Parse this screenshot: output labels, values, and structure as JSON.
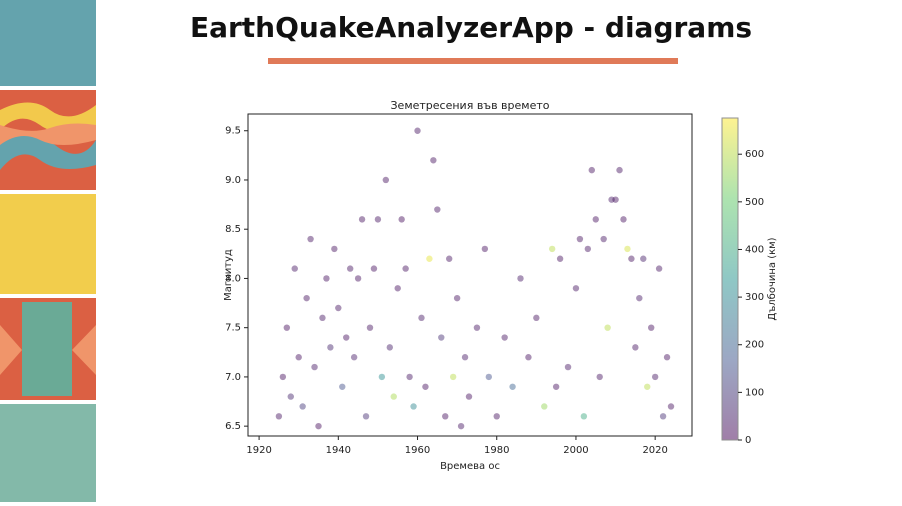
{
  "slide_title": "EarthQuakeAnalyzerApp - diagrams",
  "chart_data": {
    "type": "scatter",
    "title": "Земетресения във времето",
    "x_label": "Времева ос",
    "y_label": "Магнитуд",
    "colorbar_label": "Дълбочина (км)",
    "colormap": "viridis",
    "alpha": 0.45,
    "x": [
      1925,
      1926,
      1927,
      1928,
      1929,
      1930,
      1931,
      1932,
      1933,
      1934,
      1935,
      1936,
      1937,
      1938,
      1939,
      1940,
      1941,
      1942,
      1943,
      1944,
      1945,
      1946,
      1947,
      1948,
      1949,
      1950,
      1951,
      1952,
      1953,
      1954,
      1955,
      1956,
      1957,
      1958,
      1959,
      1960,
      1961,
      1962,
      1963,
      1964,
      1965,
      1966,
      1967,
      1968,
      1969,
      1970,
      1971,
      1972,
      1973,
      1975,
      1977,
      1978,
      1980,
      1982,
      1984,
      1986,
      1988,
      1990,
      1992,
      1994,
      1995,
      1996,
      1998,
      2000,
      2001,
      2002,
      2003,
      2004,
      2005,
      2006,
      2007,
      2008,
      2009,
      2010,
      2011,
      2012,
      2013,
      2014,
      2015,
      2016,
      2017,
      2018,
      2019,
      2020,
      2021,
      2022,
      2023,
      2024
    ],
    "values": [
      6.6,
      7.0,
      7.5,
      6.8,
      8.1,
      7.2,
      6.7,
      7.8,
      8.4,
      7.1,
      6.5,
      7.6,
      8.0,
      7.3,
      8.3,
      7.7,
      6.9,
      7.4,
      8.1,
      7.2,
      8.0,
      8.6,
      6.6,
      7.5,
      8.1,
      8.6,
      7.0,
      9.0,
      7.3,
      6.8,
      7.9,
      8.6,
      8.1,
      7.0,
      6.7,
      9.5,
      7.6,
      6.9,
      8.2,
      9.2,
      8.7,
      7.4,
      6.6,
      8.2,
      7.0,
      7.8,
      6.5,
      7.2,
      6.8,
      7.5,
      8.3,
      7.0,
      6.6,
      7.4,
      6.9,
      8.0,
      7.2,
      7.6,
      6.7,
      8.3,
      6.9,
      8.2,
      7.1,
      7.9,
      8.4,
      6.6,
      8.3,
      9.1,
      8.6,
      7.0,
      8.4,
      7.5,
      8.8,
      8.8,
      9.1,
      8.6,
      8.3,
      8.2,
      7.3,
      7.8,
      8.2,
      6.9,
      7.5,
      7.0,
      8.1,
      6.6,
      7.2,
      6.7
    ],
    "depth": [
      30,
      20,
      15,
      60,
      33,
      20,
      100,
      25,
      30,
      40,
      15,
      35,
      20,
      60,
      25,
      30,
      150,
      20,
      30,
      45,
      20,
      25,
      80,
      30,
      20,
      30,
      320,
      25,
      50,
      580,
      20,
      15,
      25,
      35,
      300,
      30,
      40,
      20,
      650,
      25,
      30,
      80,
      20,
      30,
      600,
      25,
      35,
      40,
      20,
      30,
      20,
      150,
      25,
      30,
      200,
      40,
      20,
      25,
      560,
      600,
      20,
      25,
      35,
      30,
      25,
      400,
      30,
      25,
      20,
      30,
      35,
      600,
      40,
      25,
      30,
      20,
      630,
      25,
      30,
      40,
      50,
      600,
      20,
      35,
      30,
      80,
      20,
      25
    ],
    "xlim": [
      1917.2,
      2029.3
    ],
    "xticks": [
      1920,
      1940,
      1960,
      1980,
      2000,
      2020
    ],
    "ylim": [
      6.4,
      9.67
    ],
    "yticks": [
      6.5,
      {
        "value": 7.0,
        "label": "7.0"
      },
      7.5,
      {
        "value": 8.0,
        "label": "8.0"
      },
      8.5,
      {
        "value": 9.0,
        "label": "9.0"
      },
      9.5
    ],
    "clim": [
      0,
      676
    ],
    "cticks": [
      0,
      100,
      200,
      300,
      400,
      500,
      600
    ]
  }
}
